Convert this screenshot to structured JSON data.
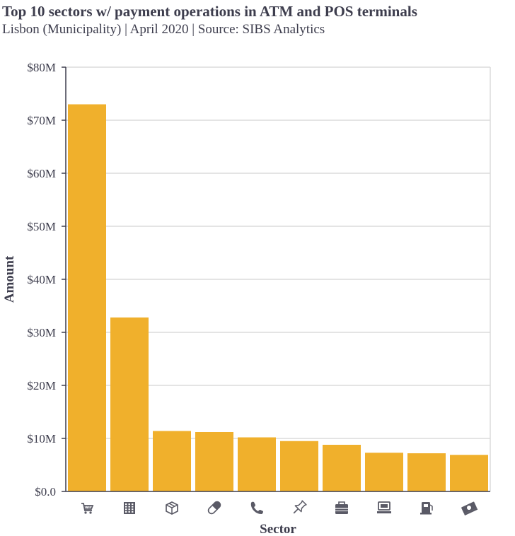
{
  "header": {
    "title": "Top 10 sectors w/ payment operations in ATM and POS terminals",
    "subtitle": "Lisbon (Municipality) | April 2020 | Source: SIBS Analytics"
  },
  "colors": {
    "bar": "#F0B02C",
    "grid": "#dcdcdc",
    "axis": "#3d3d4d",
    "icon": "#5a5a66"
  },
  "chart_data": {
    "type": "bar",
    "xlabel": "Sector",
    "ylabel": "Amount",
    "ylim": [
      0,
      80000000
    ],
    "yticks": [
      "$0.0",
      "$10M",
      "$20M",
      "$30M",
      "$40M",
      "$50M",
      "$60M",
      "$70M",
      "$80M"
    ],
    "grid": true,
    "categories": [
      "shopping-cart-icon",
      "building-icon",
      "box-icon",
      "pill-icon",
      "phone-icon",
      "pushpin-icon",
      "briefcase-icon",
      "laptop-icon",
      "gas-pump-icon",
      "money-icon"
    ],
    "values": [
      73000000,
      32800000,
      11400000,
      11200000,
      10200000,
      9500000,
      8800000,
      7300000,
      7200000,
      6900000
    ]
  }
}
